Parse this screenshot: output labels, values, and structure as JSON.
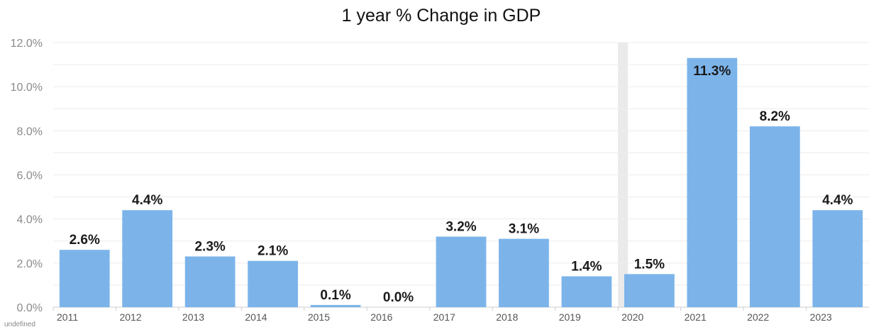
{
  "footnote": "undefined",
  "colors": {
    "bar": "#7cb4ea",
    "grid": "#ececec",
    "shade": "#eaeaea",
    "axis": "#cccccc"
  },
  "chart_data": {
    "type": "bar",
    "title": "1 year % Change in GDP",
    "xlabel": "",
    "ylabel": "",
    "categories": [
      "2011",
      "2012",
      "2013",
      "2014",
      "2015",
      "2016",
      "2017",
      "2018",
      "2019",
      "2020",
      "2021",
      "2022",
      "2023"
    ],
    "values": [
      2.6,
      4.4,
      2.3,
      2.1,
      0.1,
      0.0,
      3.2,
      3.1,
      1.4,
      1.5,
      11.3,
      8.2,
      4.4
    ],
    "data_labels": [
      "2.6%",
      "4.4%",
      "2.3%",
      "2.1%",
      "0.1%",
      "0.0%",
      "3.2%",
      "3.1%",
      "1.4%",
      "1.5%",
      "11.3%",
      "8.2%",
      "4.4%"
    ],
    "ylim": [
      0,
      12
    ],
    "yticks": [
      0,
      2,
      4,
      6,
      8,
      10,
      12
    ],
    "ytick_labels": [
      "0.0%",
      "2.0%",
      "4.0%",
      "6.0%",
      "8.0%",
      "10.0%",
      "12.0%"
    ],
    "grid": true,
    "legend": "none",
    "shaded_period": "2020"
  }
}
